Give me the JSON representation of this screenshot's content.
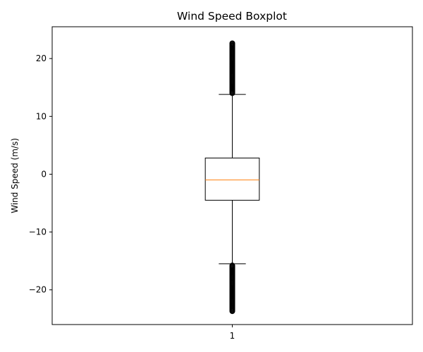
{
  "chart_data": {
    "type": "boxplot",
    "title": "Wind Speed Boxplot",
    "xlabel": "",
    "ylabel": "Wind Speed (m/s)",
    "ylim": [
      -26,
      25.5
    ],
    "xlim": [
      0.5,
      1.5
    ],
    "yticks": [
      -20,
      -10,
      0,
      10,
      20
    ],
    "yticklabels": [
      "−20",
      "−10",
      "0",
      "10",
      "20"
    ],
    "categories": [
      "1"
    ],
    "grid": false,
    "legend": "none",
    "boxes": [
      {
        "category": "1",
        "q1": -4.5,
        "median": -1.0,
        "q3": 2.8,
        "whisker_low": -15.5,
        "whisker_high": 13.8,
        "outlier_ranges": [
          [
            14.0,
            22.7
          ],
          [
            -23.7,
            -15.7
          ]
        ]
      }
    ],
    "colors": {
      "box": "#000000",
      "median": "#ff7f0e",
      "outlier": "#000000"
    }
  }
}
